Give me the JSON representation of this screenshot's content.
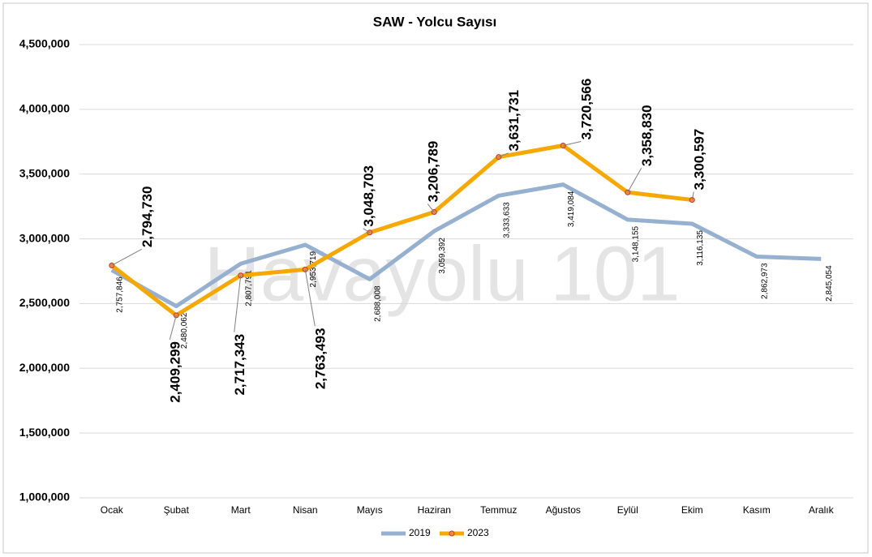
{
  "chart_data": {
    "type": "line",
    "title": "SAW - Yolcu Sayısı",
    "annotation": "Havayolu 101",
    "categories": [
      "Ocak",
      "Şubat",
      "Mart",
      "Nisan",
      "Mayıs",
      "Haziran",
      "Temmuz",
      "Ağustos",
      "Eylül",
      "Ekim",
      "Kasım",
      "Aralık"
    ],
    "series": [
      {
        "name": "2019",
        "color": "#96b0d0",
        "values": [
          2757846,
          2480062,
          2807791,
          2953719,
          2688008,
          3059392,
          3333633,
          3419084,
          3148155,
          3116135,
          2862973,
          2845054
        ],
        "value_labels": [
          "2,757,846",
          "2,480,062",
          "2,807,791",
          "2,953,719",
          "2,688,008",
          "3,059,392",
          "3,333,633",
          "3,419,084",
          "3,148,155",
          "3,116,135",
          "2,862,973",
          "2,845,054"
        ]
      },
      {
        "name": "2023",
        "color": "#f5a800",
        "values": [
          2794730,
          2409299,
          2717343,
          2763493,
          3048703,
          3206789,
          3631731,
          3720566,
          3358830,
          3300597,
          null,
          null
        ],
        "value_labels": [
          "2,794,730",
          "2,409,299",
          "2,717,343",
          "2,763,493",
          "3,048,703",
          "3,206,789",
          "3,631,731",
          "3,720,566",
          "3,358,830",
          "3,300,597",
          null,
          null
        ]
      }
    ],
    "ylim": [
      1000000,
      4500000
    ],
    "yticks": [
      {
        "value": 1000000,
        "label": "1,000,000"
      },
      {
        "value": 1500000,
        "label": "1,500,000"
      },
      {
        "value": 2000000,
        "label": "2,000,000"
      },
      {
        "value": 2500000,
        "label": "2,500,000"
      },
      {
        "value": 3000000,
        "label": "3,000,000"
      },
      {
        "value": 3500000,
        "label": "3,500,000"
      },
      {
        "value": 4000000,
        "label": "4,000,000"
      },
      {
        "value": 4500000,
        "label": "4,500,000"
      }
    ],
    "grid": true,
    "legend": "bottom"
  }
}
